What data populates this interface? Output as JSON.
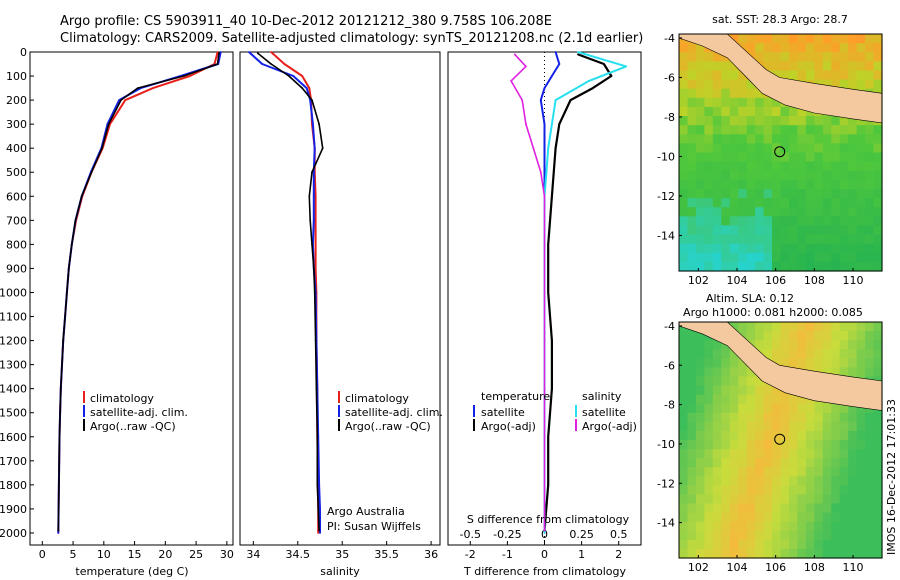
{
  "title_line1": "Argo profile: CS 5903911_40 10-Dec-2012 20121212_380 9.758S 106.208E",
  "title_line2": "Climatology: CARS2009. Satellite-adjusted climatology: synTS_20121208.nc (2.1d earlier)",
  "timestamp_label": "IMOS 16-Dec-2012 17:01:33",
  "colors": {
    "climatology": "#e8201c",
    "satellite": "#1422e6",
    "argo": "#000000",
    "sal_satellite": "#26e0f0",
    "sal_argo": "#e020e0",
    "land": "#f5c9a0"
  },
  "depth_ticks": [
    0,
    100,
    200,
    300,
    400,
    500,
    600,
    700,
    800,
    900,
    1000,
    1100,
    1200,
    1300,
    1400,
    1500,
    1600,
    1700,
    1800,
    1900,
    2000
  ],
  "legend_labels": [
    "climatology",
    "satellite-adj. clim.",
    "Argo(..raw -QC)"
  ],
  "annotation_lines": [
    "Argo Australia",
    "PI: Susan Wijffels"
  ],
  "diff_legend": {
    "temp_title": "temperature",
    "sal_title": "salinity",
    "temp_items": [
      "satellite",
      "Argo(-adj)"
    ],
    "sal_items": [
      "satellite",
      "Argo(-adj)"
    ]
  },
  "sst_map": {
    "title": "sat. SST: 28.3 Argo: 28.7",
    "x_ticks": [
      102,
      104,
      106,
      108,
      110
    ],
    "y_ticks": [
      -4,
      -6,
      -8,
      -10,
      -12,
      -14
    ]
  },
  "sla_map": {
    "title_line1": "Altim. SLA: 0.12",
    "title_line2": "Argo h1000: 0.081 h2000: 0.085",
    "x_ticks": [
      102,
      104,
      106,
      108,
      110
    ],
    "y_ticks": [
      -4,
      -6,
      -8,
      -10,
      -12,
      -14
    ]
  },
  "chart_data": [
    {
      "type": "line",
      "xlabel": "temperature (deg C)",
      "ylabel": "",
      "xlim": [
        -2,
        31
      ],
      "ylim": [
        2050,
        0
      ],
      "x_ticks": [
        0,
        5,
        10,
        15,
        20,
        25,
        30
      ],
      "series": [
        {
          "name": "climatology",
          "x": [
            28.5,
            28.0,
            24.0,
            18.0,
            13.5,
            11.0,
            9.8,
            8.0,
            6.5,
            5.5,
            4.8,
            4.3,
            4.0,
            3.7,
            3.4,
            3.2,
            3.0,
            2.9,
            2.8,
            2.7,
            2.6
          ],
          "y": [
            0,
            50,
            100,
            150,
            200,
            300,
            400,
            500,
            600,
            700,
            800,
            900,
            1000,
            1100,
            1200,
            1300,
            1400,
            1500,
            1600,
            1800,
            2000
          ]
        },
        {
          "name": "satellite-adj. clim.",
          "x": [
            29.0,
            28.6,
            22.5,
            16.0,
            12.5,
            10.6,
            9.6,
            7.9,
            6.4,
            5.4,
            4.8,
            4.3,
            4.0,
            3.7,
            3.4,
            3.2,
            3.0,
            2.9,
            2.8,
            2.7,
            2.6
          ],
          "y": [
            0,
            50,
            100,
            150,
            200,
            300,
            400,
            500,
            600,
            700,
            800,
            900,
            1000,
            1100,
            1200,
            1300,
            1400,
            1500,
            1600,
            1800,
            2000
          ]
        },
        {
          "name": "Argo(..raw -QC)",
          "x": [
            28.7,
            28.5,
            23.0,
            15.5,
            12.8,
            10.8,
            9.7,
            8.0,
            6.4,
            5.4,
            4.8,
            4.3,
            4.0,
            3.7,
            3.4,
            3.2,
            3.0,
            2.9,
            2.8,
            2.7,
            2.6
          ],
          "y": [
            5,
            50,
            100,
            150,
            200,
            300,
            400,
            500,
            600,
            700,
            800,
            900,
            1000,
            1100,
            1200,
            1300,
            1400,
            1500,
            1600,
            1800,
            1990
          ]
        }
      ]
    },
    {
      "type": "line",
      "xlabel": "salinity",
      "xlim": [
        33.85,
        36.1
      ],
      "ylim": [
        2050,
        0
      ],
      "x_ticks": [
        34,
        34.5,
        35,
        35.5,
        36
      ],
      "series": [
        {
          "name": "climatology",
          "x": [
            34.2,
            34.35,
            34.55,
            34.63,
            34.65,
            34.66,
            34.69,
            34.69,
            34.7,
            34.7,
            34.7,
            34.7,
            34.71,
            34.71,
            34.72,
            34.72,
            34.73,
            34.73,
            34.73
          ],
          "y": [
            0,
            50,
            100,
            150,
            200,
            300,
            400,
            500,
            600,
            700,
            800,
            900,
            1000,
            1200,
            1400,
            1600,
            1800,
            1900,
            2000
          ]
        },
        {
          "name": "satellite-adj. clim.",
          "x": [
            33.95,
            34.1,
            34.45,
            34.6,
            34.64,
            34.67,
            34.69,
            34.68,
            34.68,
            34.68,
            34.67,
            34.68,
            34.7,
            34.71,
            34.72,
            34.73,
            34.74,
            34.75,
            34.75
          ],
          "y": [
            0,
            50,
            100,
            150,
            200,
            300,
            400,
            500,
            600,
            700,
            800,
            900,
            1000,
            1200,
            1400,
            1600,
            1800,
            1900,
            2000
          ]
        },
        {
          "name": "Argo(..raw -QC)",
          "x": [
            34.05,
            34.2,
            34.4,
            34.55,
            34.66,
            34.74,
            34.78,
            34.66,
            34.63,
            34.64,
            34.66,
            34.68,
            34.69,
            34.7,
            34.71,
            34.72,
            34.72,
            34.74
          ],
          "y": [
            5,
            50,
            100,
            150,
            200,
            300,
            400,
            500,
            600,
            700,
            800,
            900,
            1000,
            1200,
            1400,
            1600,
            1800,
            1990
          ]
        }
      ]
    },
    {
      "type": "line",
      "xlabel": "T difference from climatology",
      "x2label": "S difference from climatology",
      "xlim": [
        -2.6,
        2.6
      ],
      "ylim": [
        2050,
        0
      ],
      "x_ticks": [
        -2,
        -1,
        0,
        1,
        2
      ],
      "x2_tick_labels": [
        "-0.5",
        "-0.25",
        "0",
        "0.25",
        "0.5"
      ],
      "series": [
        {
          "name": "temperature satellite",
          "x": [
            0.3,
            0.4,
            0.2,
            0.0,
            -0.1,
            0.0,
            0.0,
            0.0,
            0.0,
            0.0,
            0.0,
            0.0,
            0.0,
            0.0,
            0.0
          ],
          "y": [
            0,
            50,
            100,
            150,
            200,
            300,
            400,
            600,
            800,
            1000,
            1200,
            1400,
            1600,
            1800,
            2000
          ]
        },
        {
          "name": "temperature Argo(-adj)",
          "x": [
            0.9,
            1.6,
            1.8,
            1.3,
            0.7,
            0.4,
            0.3,
            0.2,
            0.1,
            0.1,
            0.2,
            0.2,
            0.1,
            0.1,
            0.0
          ],
          "y": [
            10,
            50,
            100,
            150,
            200,
            300,
            400,
            600,
            800,
            1000,
            1200,
            1400,
            1600,
            1800,
            1990
          ]
        },
        {
          "name": "salinity satellite",
          "x": [
            0.9,
            2.2,
            1.2,
            0.3,
            0.2,
            0.1,
            0.05,
            0.0,
            0.0,
            0.0,
            0.0,
            0.0,
            0.0,
            0.0
          ],
          "y": [
            0,
            60,
            120,
            200,
            300,
            400,
            500,
            600,
            800,
            1000,
            1200,
            1400,
            1600,
            2000
          ]
        },
        {
          "name": "salinity Argo(-adj)",
          "x": [
            -0.8,
            -0.5,
            -0.9,
            -0.6,
            -0.5,
            -0.3,
            -0.1,
            0.0,
            0.0,
            0.0,
            0.0,
            0.0,
            0.0,
            0.0
          ],
          "y": [
            10,
            60,
            120,
            200,
            300,
            400,
            500,
            600,
            800,
            1000,
            1200,
            1400,
            1600,
            1990
          ]
        }
      ]
    }
  ]
}
